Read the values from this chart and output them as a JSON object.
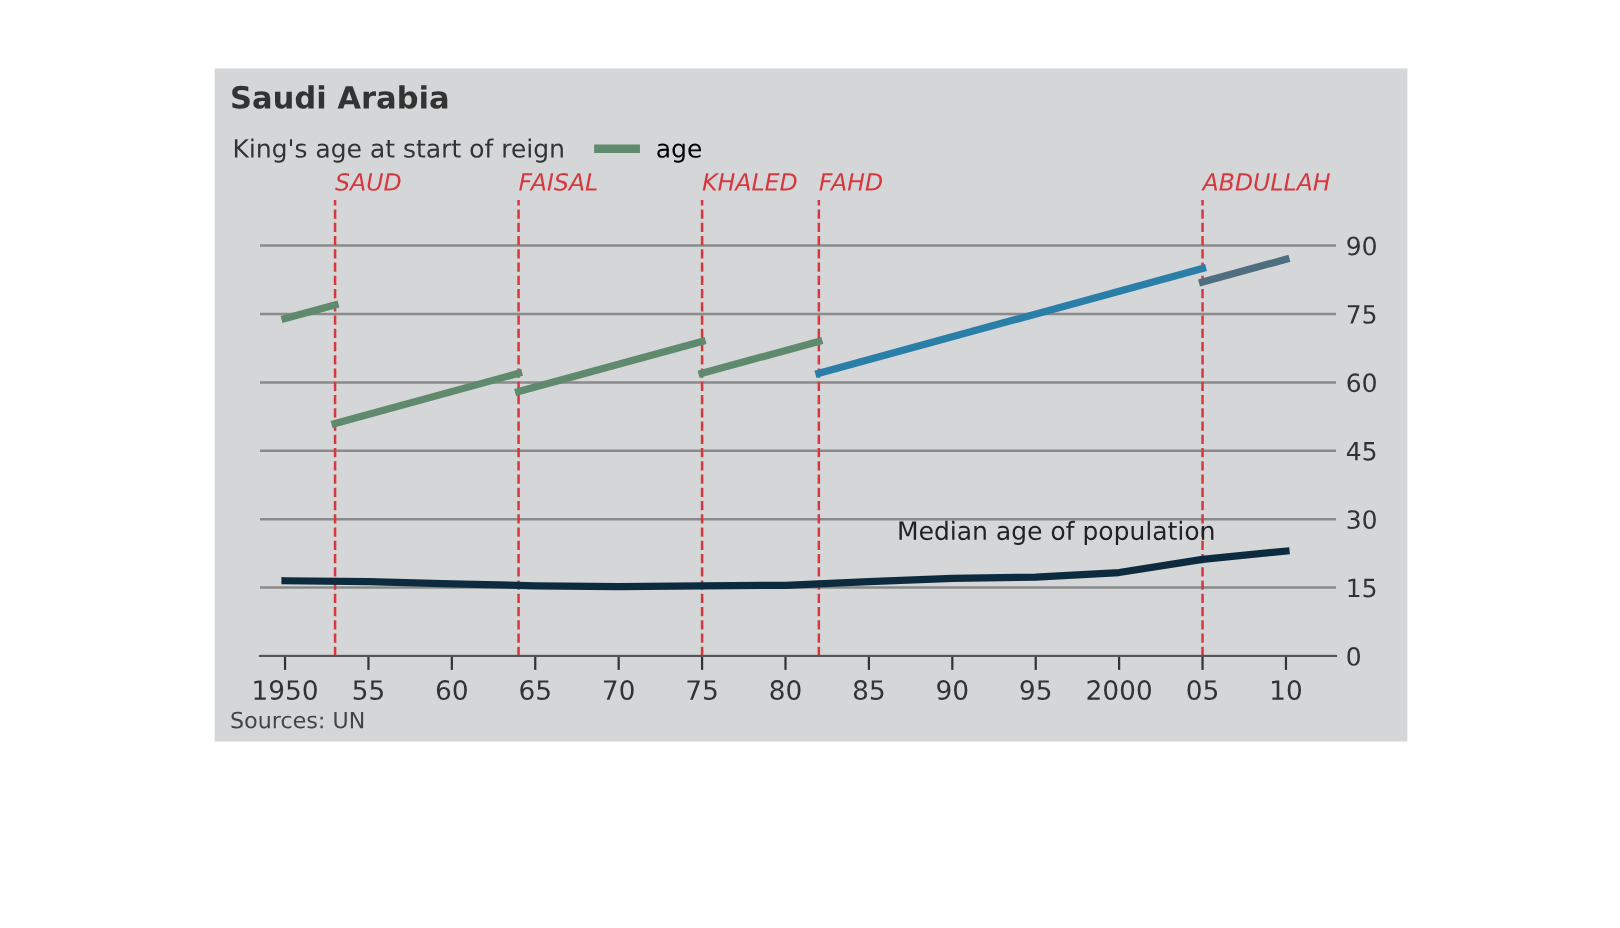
{
  "chart_data": {
    "type": "line",
    "title": "Saudi Arabia",
    "legend_title": "King's age at start of reign",
    "xlim": [
      1948.5,
      2013
    ],
    "ylim": [
      0,
      100
    ],
    "xticks": [
      1950,
      {
        "value": 1955,
        "label": "55"
      },
      {
        "value": 1960,
        "label": "60"
      },
      {
        "value": 1965,
        "label": "65"
      },
      {
        "value": 1970,
        "label": "70"
      },
      {
        "value": 1975,
        "label": "75"
      },
      {
        "value": 1980,
        "label": "80"
      },
      {
        "value": 1985,
        "label": "85"
      },
      {
        "value": 1990,
        "label": "90"
      },
      {
        "value": 1995,
        "label": "95"
      },
      2000,
      {
        "value": 2005,
        "label": "05"
      },
      {
        "value": 2010,
        "label": "10"
      }
    ],
    "yticks": [
      0,
      15,
      30,
      45,
      60,
      75,
      90
    ],
    "grid": "y",
    "legend": "top left",
    "marker": "none",
    "line_style": "solid",
    "series": [
      {
        "name": "age",
        "color": "#5f8a6e",
        "x": [
          1950,
          1953
        ],
        "values": [
          74,
          77
        ]
      },
      {
        "color": "#5f8a6e",
        "x": [
          1953,
          1964
        ],
        "values": [
          51,
          62
        ]
      },
      {
        "color": "#5f8a6e",
        "x": [
          1964,
          1975
        ],
        "values": [
          58,
          69
        ]
      },
      {
        "color": "#5f8a6e",
        "x": [
          1975,
          1982
        ],
        "values": [
          62,
          69
        ]
      },
      {
        "color": "#2a7fa8",
        "x": [
          1982,
          2005
        ],
        "values": [
          62,
          85
        ]
      },
      {
        "color": "#4f6f80",
        "x": [
          2005,
          2010
        ],
        "values": [
          82,
          87
        ]
      },
      {
        "color": "#0d2b3e",
        "x": [
          1950,
          1955,
          1960,
          1965,
          1970,
          1975,
          1980,
          1985,
          1990,
          1995,
          2000,
          2005,
          2010
        ],
        "values": [
          16.5,
          16.3,
          15.8,
          15.4,
          15.2,
          15.4,
          15.5,
          16.3,
          17,
          17.3,
          18.3,
          21.2,
          23
        ]
      }
    ],
    "ref_lines": [
      {
        "axis": "x",
        "value": 1953,
        "label": "SAUD",
        "color": "#d9363e",
        "line_style": "dashed"
      },
      {
        "axis": "x",
        "value": 1964,
        "label": "FAISAL",
        "color": "#d9363e",
        "line_style": "dashed"
      },
      {
        "axis": "x",
        "value": 1975,
        "label": "KHALED",
        "color": "#d9363e",
        "line_style": "dashed"
      },
      {
        "axis": "x",
        "value": 1982,
        "label": "FAHD",
        "color": "#d9363e",
        "line_style": "dashed"
      },
      {
        "axis": "x",
        "value": 2005,
        "label": "ABDULLAH",
        "color": "#d9363e",
        "line_style": "dashed"
      }
    ],
    "annotations": [
      "Median age of population",
      "Sources: UN"
    ]
  }
}
